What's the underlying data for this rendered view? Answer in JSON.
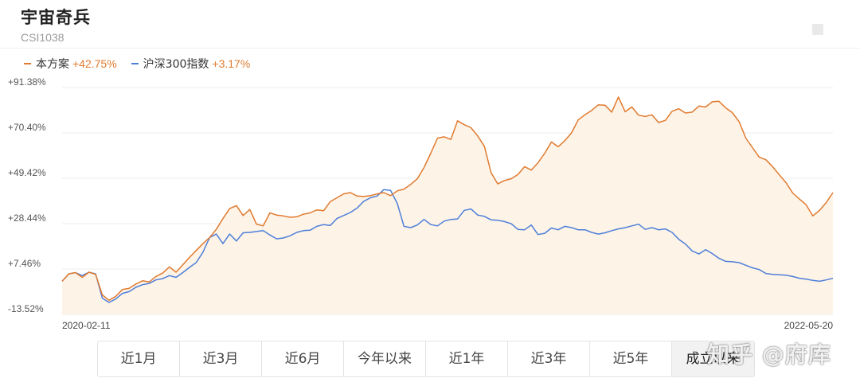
{
  "header": {
    "title": "宇宙奇兵",
    "code": "CSI1038"
  },
  "colors": {
    "strategy": "#e07a2f",
    "benchmark": "#4e7fd9",
    "fill": "#fdf3e7",
    "grid": "#eeeeee"
  },
  "legend": [
    {
      "name": "本方案",
      "value": "+42.75%",
      "color": "#e07a2f"
    },
    {
      "name": "沪深300指数",
      "value": "+3.17%",
      "color": "#4e7fd9"
    }
  ],
  "tabs": [
    "近1月",
    "近3月",
    "近6月",
    "今年以来",
    "近1年",
    "近3年",
    "近5年",
    "成立以来"
  ],
  "active_tab": "成立以来",
  "watermark": "知乎 @府库",
  "chart_data": {
    "type": "line",
    "x_start": "2020-02-11",
    "x_end": "2022-05-20",
    "y_ticks": [
      "+91.38%",
      "+70.40%",
      "+49.42%",
      "+28.44%",
      "+7.46%",
      "-13.52%"
    ],
    "ylim": [
      -13.52,
      91.38
    ],
    "series": [
      {
        "name": "本方案",
        "color": "#e07a2f",
        "area": true,
        "values": [
          1.8,
          5.2,
          5.8,
          3.6,
          6.0,
          5.0,
          -4.5,
          -7.0,
          -5.2,
          -2.0,
          -1.5,
          0.5,
          2.0,
          1.5,
          4.0,
          5.6,
          8.4,
          6.0,
          9.4,
          12.8,
          16.0,
          19.2,
          22.0,
          25.8,
          30.8,
          35.4,
          36.8,
          32.2,
          35.0,
          28.2,
          27.4,
          33.4,
          32.4,
          32.0,
          31.4,
          31.6,
          32.8,
          33.4,
          34.8,
          34.4,
          38.6,
          40.4,
          42.2,
          42.8,
          41.2,
          41.0,
          41.4,
          42.2,
          42.8,
          41.4,
          43.6,
          44.4,
          46.6,
          49.2,
          54.4,
          61.0,
          68.0,
          68.6,
          67.4,
          76.0,
          74.2,
          72.8,
          69.0,
          64.2,
          52.0,
          46.8,
          48.4,
          49.2,
          51.2,
          54.8,
          53.2,
          56.6,
          61.0,
          66.2,
          64.0,
          66.8,
          70.4,
          76.4,
          78.8,
          80.8,
          83.4,
          83.2,
          80.0,
          87.0,
          80.2,
          82.4,
          78.6,
          78.0,
          78.8,
          75.2,
          76.2,
          80.4,
          81.6,
          79.6,
          80.0,
          82.8,
          82.4,
          84.8,
          85.0,
          82.0,
          79.8,
          75.6,
          68.0,
          63.6,
          59.2,
          58.0,
          54.8,
          51.0,
          47.4,
          42.6,
          39.8,
          37.2,
          32.0,
          34.6,
          38.2,
          42.8
        ]
      },
      {
        "name": "沪深300指数",
        "color": "#4e7fd9",
        "area": false,
        "values": [
          1.8,
          5.2,
          5.8,
          4.4,
          6.0,
          5.2,
          -6.0,
          -8.0,
          -6.4,
          -3.8,
          -3.0,
          -1.0,
          0.2,
          0.8,
          2.4,
          3.0,
          4.4,
          3.6,
          5.8,
          8.2,
          10.4,
          15.2,
          22.0,
          23.6,
          19.2,
          23.6,
          20.4,
          24.2,
          24.4,
          24.8,
          25.2,
          23.2,
          21.4,
          21.8,
          22.8,
          24.4,
          25.2,
          25.4,
          27.2,
          28.0,
          27.6,
          30.8,
          32.2,
          33.6,
          35.6,
          38.8,
          40.4,
          41.2,
          44.2,
          43.8,
          37.8,
          27.2,
          26.6,
          27.8,
          30.4,
          28.0,
          27.4,
          29.6,
          30.4,
          30.6,
          34.6,
          35.2,
          32.4,
          31.8,
          30.2,
          30.0,
          29.4,
          28.4,
          25.8,
          25.6,
          27.8,
          23.4,
          24.0,
          26.4,
          25.6,
          27.2,
          26.6,
          25.6,
          25.6,
          24.4,
          23.6,
          24.2,
          25.2,
          26.0,
          26.6,
          27.4,
          28.2,
          25.8,
          26.6,
          25.6,
          26.0,
          24.4,
          21.2,
          19.0,
          15.8,
          14.4,
          16.4,
          14.6,
          12.4,
          11.0,
          10.8,
          10.4,
          9.2,
          8.0,
          7.2,
          5.4,
          5.0,
          4.8,
          4.6,
          4.0,
          3.2,
          2.8,
          2.2,
          1.8,
          2.4,
          3.17
        ]
      }
    ]
  }
}
